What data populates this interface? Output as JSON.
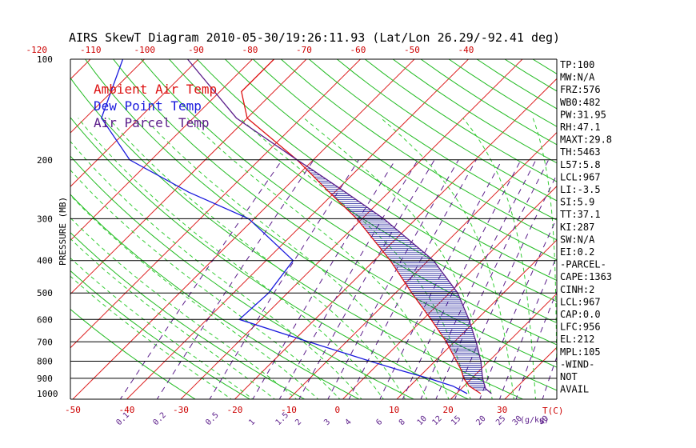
{
  "title": "AIRS SkewT Diagram 2010-05-30/19:26:11.93 (Lat/Lon 26.29/-92.41 deg)",
  "colors": {
    "ambient": "#dd1111",
    "dewpoint": "#1a1add",
    "parcel": "#5b1d8a",
    "isotherm": "#dd2222",
    "dry_adiabat": "#22bb22",
    "moist_adiabat": "#33cc33",
    "mixing_ratio": "#5b1d8a",
    "hatch": "#1a1a99",
    "isobar": "#000000"
  },
  "legend": [
    {
      "label": "Ambient Air Temp",
      "color": "#dd1111"
    },
    {
      "label": "Dew Point Temp",
      "color": "#1a1add"
    },
    {
      "label": "Air Parcel Temp",
      "color": "#5b1d8a"
    }
  ],
  "chart_data": {
    "type": "line",
    "skew_t_log_p": true,
    "title": "AIRS SkewT Diagram 2010-05-30/19:26:11.93 (Lat/Lon 26.29/-92.41 deg)",
    "ylabel": "PRESSURE (MB)",
    "xlabel": "T(C)",
    "mixing_ratio_unit": "(g/kg)",
    "pressure_ticks": [
      100,
      200,
      300,
      400,
      500,
      600,
      700,
      800,
      900,
      1000
    ],
    "top_temp_ticks": [
      -120,
      -110,
      -100,
      -90,
      -80,
      -70,
      -60,
      -50,
      -40
    ],
    "bottom_temp_ticks": [
      -50,
      -40,
      -30,
      -20,
      -10,
      0,
      10,
      20,
      30
    ],
    "mixing_ratio_ticks": [
      "0.1",
      "0.2",
      "0.5",
      "1",
      "1.5",
      "2",
      "3",
      "4",
      "6",
      "8",
      "10",
      "12",
      "15",
      "20",
      "25",
      "30",
      "40"
    ],
    "ylim": [
      1050,
      100
    ],
    "xlim_bottom": [
      -53,
      40
    ],
    "series": [
      {
        "name": "Ambient Air Temp",
        "points": [
          {
            "p": 1000,
            "t": 24.5
          },
          {
            "p": 950,
            "t": 21.0
          },
          {
            "p": 900,
            "t": 18.5
          },
          {
            "p": 850,
            "t": 16.5
          },
          {
            "p": 800,
            "t": 14.0
          },
          {
            "p": 700,
            "t": 8.5
          },
          {
            "p": 600,
            "t": 1.5
          },
          {
            "p": 500,
            "t": -7.0
          },
          {
            "p": 400,
            "t": -17.0
          },
          {
            "p": 300,
            "t": -31.0
          },
          {
            "p": 250,
            "t": -41.0
          },
          {
            "p": 200,
            "t": -53.0
          },
          {
            "p": 150,
            "t": -70.0
          },
          {
            "p": 125,
            "t": -76.0
          },
          {
            "p": 100,
            "t": -76.0
          }
        ]
      },
      {
        "name": "Dew Point Temp",
        "points": [
          {
            "p": 1000,
            "t": 22.0
          },
          {
            "p": 950,
            "t": 18.0
          },
          {
            "p": 900,
            "t": 12.0
          },
          {
            "p": 850,
            "t": 5.0
          },
          {
            "p": 800,
            "t": -2.0
          },
          {
            "p": 700,
            "t": -17.0
          },
          {
            "p": 600,
            "t": -34.0
          },
          {
            "p": 500,
            "t": -33.5
          },
          {
            "p": 400,
            "t": -35.0
          },
          {
            "p": 300,
            "t": -51.0
          },
          {
            "p": 250,
            "t": -67.0
          },
          {
            "p": 200,
            "t": -84.0
          },
          {
            "p": 150,
            "t": -97.0
          },
          {
            "p": 100,
            "t": -104.0
          }
        ]
      },
      {
        "name": "Air Parcel Temp",
        "points": [
          {
            "p": 1000,
            "t": 26.5
          },
          {
            "p": 967,
            "t": 24.5
          },
          {
            "p": 900,
            "t": 22.0
          },
          {
            "p": 800,
            "t": 18.5
          },
          {
            "p": 700,
            "t": 14.0
          },
          {
            "p": 600,
            "t": 8.5
          },
          {
            "p": 500,
            "t": 1.5
          },
          {
            "p": 400,
            "t": -9.0
          },
          {
            "p": 300,
            "t": -26.0
          },
          {
            "p": 250,
            "t": -38.0
          },
          {
            "p": 212,
            "t": -49.0
          },
          {
            "p": 200,
            "t": -53.0
          },
          {
            "p": 150,
            "t": -72.0
          },
          {
            "p": 100,
            "t": -92.0
          }
        ]
      }
    ]
  },
  "indices": [
    "TP:100",
    "MW:N/A",
    "FRZ:576",
    "WB0:482",
    "PW:31.95",
    "RH:47.1",
    "MAXT:29.8",
    "TH:5463",
    "L57:5.8",
    "LCL:967",
    "LI:-3.5",
    "SI:5.9",
    "TT:37.1",
    "KI:287",
    "SW:N/A",
    "EI:0.2",
    "-PARCEL-",
    "CAPE:1363",
    "CINH:2",
    "LCL:967",
    "CAP:0.0",
    "LFC:956",
    "EL:212",
    "MPL:105",
    "-WIND-",
    "NOT",
    "AVAIL"
  ]
}
